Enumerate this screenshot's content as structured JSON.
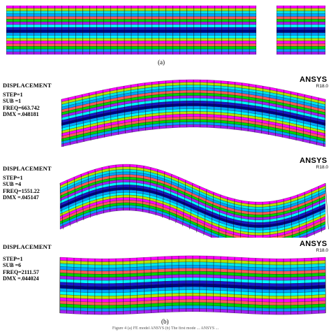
{
  "figure_a_label": "(a)",
  "figure_b_label": "(b)",
  "caption_fragment": "Figure 4  (a) FE model  ANSYS  (b) The first mode ... ANSYS ...",
  "layer_colors": [
    "#00a2ff",
    "#b8e000",
    "#ff00ff",
    "#1818c8",
    "#ff5a5a",
    "#00e6e6",
    "#00d000",
    "#a020f0",
    "#000080",
    "#00ffff"
  ],
  "layer_sequence": [
    2,
    1,
    5,
    0,
    4,
    6,
    7,
    9,
    3,
    8,
    0,
    9,
    1,
    2,
    4,
    6,
    0,
    7
  ],
  "modes": [
    {
      "title": "DISPLACEMENT",
      "step": "STEP=1",
      "sub": "SUB =1",
      "freq": "FREQ=663.742",
      "dmx": "DMX =.048181",
      "brand": "ANSYS",
      "version": "R18.0"
    },
    {
      "title": "DISPLACEMENT",
      "step": "STEP=1",
      "sub": "SUB =4",
      "freq": "FREQ=1551.22",
      "dmx": "DMX =.045147",
      "brand": "ANSYS",
      "version": "R18.0"
    },
    {
      "title": "DISPLACEMENT",
      "step": "STEP=1",
      "sub": "SUB =6",
      "freq": "FREQ=2111.57",
      "dmx": "DMX =.044024",
      "brand": "ANSYS",
      "version": "R18.0"
    }
  ]
}
